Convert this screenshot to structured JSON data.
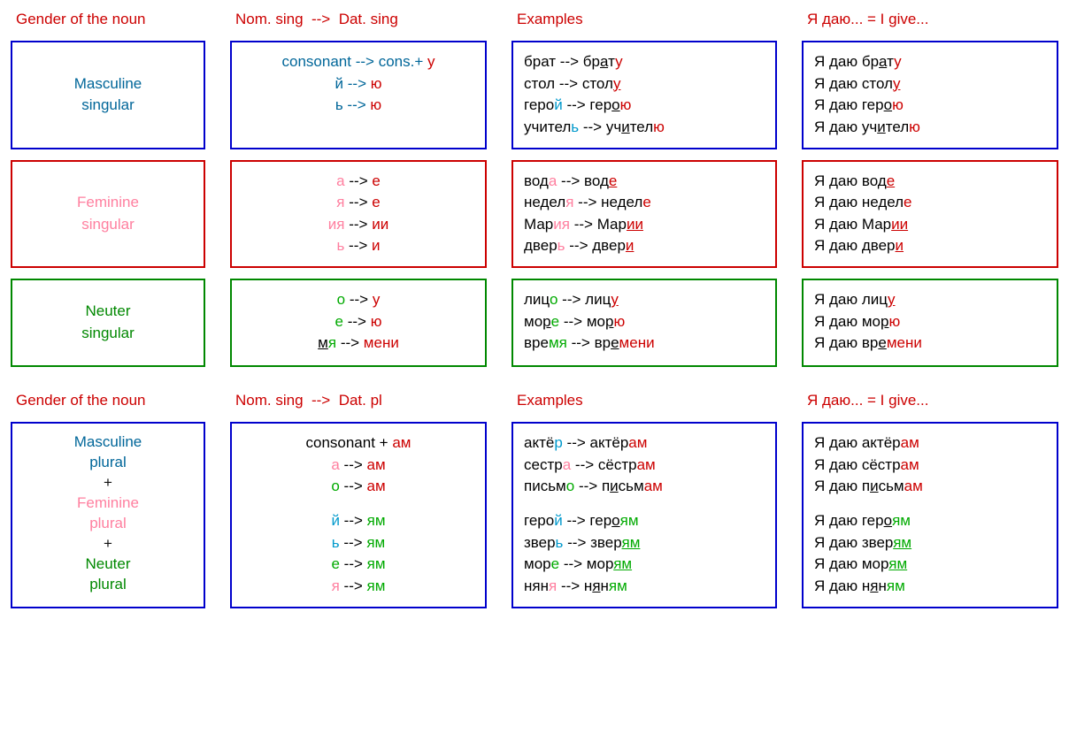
{
  "headers": {
    "col1": "Gender of the noun",
    "col2a": "Nom. sing",
    "col2b_sing": "Dat. sing",
    "col2b_pl": "Dat. pl",
    "col3": "Examples",
    "col4": "Я даю... = I give...",
    "arrow": "-->"
  },
  "colors": {
    "blue_border": "#0000cc",
    "red_border": "#cc0000",
    "green_border": "#008800",
    "blue_text": "#006699",
    "pink_text": "#ff7f9f",
    "green_text": "#008800",
    "red_text": "#cc0000",
    "hl_blue": "#0099cc",
    "hl_green": "#00aa00"
  },
  "masc": {
    "label1": "Masculine",
    "label2": "singular",
    "rules": [
      {
        "from": "consonant",
        "to": "cons.",
        "suffix": "у"
      },
      {
        "from": "й",
        "to": "",
        "suffix": "ю"
      },
      {
        "from": "ь",
        "to": "",
        "suffix": "ю"
      }
    ],
    "examples": [
      {
        "stem_a": "брат",
        "hl_a": "",
        "stem_b": "бр",
        "mid": "а",
        "rest": "т",
        "suf": "у"
      },
      {
        "stem_a": "стол",
        "hl_a": "",
        "stem_b": "стол",
        "mid": "",
        "rest": "",
        "suf": "у",
        "u": "у"
      },
      {
        "stem_a": "геро",
        "hl_a": "й",
        "stem_b": "гер",
        "mid": "о",
        "rest": "",
        "suf": "ю",
        "u": "о"
      },
      {
        "stem_a": "учител",
        "hl_a": "ь",
        "stem_b": "уч",
        "mid": "и",
        "rest": "тел",
        "suf": "ю",
        "u": "и"
      }
    ],
    "sentences": [
      {
        "pre": "Я даю бр",
        "u": "а",
        "mid": "т",
        "suf": "у"
      },
      {
        "pre": "Я даю стол",
        "u": "",
        "mid": "",
        "suf": "у",
        "usuf": "у"
      },
      {
        "pre": "Я даю гер",
        "u": "о",
        "mid": "",
        "suf": "ю"
      },
      {
        "pre": "Я даю уч",
        "u": "и",
        "mid": "тел",
        "suf": "ю"
      }
    ]
  },
  "fem": {
    "label1": "Feminine",
    "label2": "singular",
    "rules": [
      {
        "from": "а",
        "to": "",
        "suffix": "е"
      },
      {
        "from": "я",
        "to": "",
        "suffix": "е"
      },
      {
        "from": "ия",
        "to": "",
        "suffix": "ии"
      },
      {
        "from": "ь",
        "to": "",
        "suffix": "и"
      }
    ],
    "examples": [
      {
        "a1": "вод",
        "a2": "а",
        "b1": "вод",
        "bsuf": "е",
        "u": "е"
      },
      {
        "a1": "недел",
        "a2": "я",
        "b1": "недел",
        "bsuf": "е",
        "u": ""
      },
      {
        "a1": "Мар",
        "a2": "ия",
        "b1": "Мар",
        "bsuf": "ии",
        "u": "и"
      },
      {
        "a1": "двер",
        "a2": "ь",
        "b1": "двер",
        "bsuf": "и",
        "u": "и"
      }
    ],
    "sentences": [
      {
        "pre": "Я даю вод",
        "suf": "е",
        "u": "е"
      },
      {
        "pre": "Я даю недел",
        "suf": "е",
        "u": ""
      },
      {
        "pre": "Я даю Мар",
        "suf": "ии",
        "u": "и"
      },
      {
        "pre": "Я даю двер",
        "suf": "и",
        "u": "и"
      }
    ]
  },
  "neut": {
    "label1": "Neuter",
    "label2": "singular",
    "rules": [
      {
        "from": "о",
        "to": "",
        "suffix": "у"
      },
      {
        "from": "е",
        "to": "",
        "suffix": "ю"
      },
      {
        "from": "мя",
        "to": "",
        "suffix": "мени",
        "u": "м"
      }
    ],
    "examples": [
      {
        "a1": "лиц",
        "a2": "о",
        "b1": "лиц",
        "bsuf": "у",
        "u": "у"
      },
      {
        "a1": "мо",
        "a2": "р",
        "a3": "е",
        "b1": "мо",
        "b2": "р",
        "bsuf": "ю",
        "u": "р"
      },
      {
        "a1": "вре",
        "a2": "мя",
        "b1": "вр",
        "b2": "е",
        "bsuf": "мени",
        "u": "е"
      }
    ],
    "sentences": [
      {
        "pre": "Я даю лиц",
        "suf": "у",
        "u": "у"
      },
      {
        "pre": "Я даю мо",
        "u": "р",
        "mid": "",
        "suf": "ю"
      },
      {
        "pre": "Я даю вр",
        "u": "е",
        "mid": "",
        "suf": "мени"
      }
    ]
  },
  "plural": {
    "labels": {
      "m1": "Masculine",
      "m2": "plural",
      "f1": "Feminine",
      "f2": "plural",
      "n1": "Neuter",
      "n2": "plural",
      "plus": "+"
    },
    "rules_top": [
      {
        "from": "consonant",
        "plus": "+",
        "suffix": "ам"
      },
      {
        "from": "а",
        "to": "",
        "suffix": "ам"
      },
      {
        "from": "о",
        "to": "",
        "suffix": "ам"
      }
    ],
    "rules_bot": [
      {
        "from": "й",
        "to": "",
        "suffix": "ям"
      },
      {
        "from": "ь",
        "to": "",
        "suffix": "ям"
      },
      {
        "from": "е",
        "to": "",
        "suffix": "ям"
      },
      {
        "from": "я",
        "to": "",
        "suffix": "ям"
      }
    ],
    "examples_top": [
      {
        "a1": "актё",
        "a2": "р",
        "b1": "актёр",
        "bsuf": "ам"
      },
      {
        "a1": "сестр",
        "a2": "а",
        "b1": "сёстр",
        "bsuf": "ам"
      },
      {
        "a1": "письм",
        "a2": "о",
        "b1": "п",
        "u": "и",
        "b2": "сьм",
        "bsuf": "ам"
      }
    ],
    "examples_bot": [
      {
        "a1": "геро",
        "a2": "й",
        "b1": "гер",
        "u": "о",
        "b2": "",
        "bsuf": "ям"
      },
      {
        "a1": "звер",
        "a2": "ь",
        "b1": "звер",
        "u": "я",
        "b2": "",
        "bsuf": "м",
        "full": "ям"
      },
      {
        "a1": "мор",
        "a2": "е",
        "b1": "мор",
        "u": "я",
        "b2": "",
        "bsuf": "м",
        "full": "ям"
      },
      {
        "a1": "нян",
        "a2": "я",
        "b1": "н",
        "u": "я",
        "b2": "н",
        "bsuf": "ям"
      }
    ],
    "sentences_top": [
      {
        "pre": "Я даю актёр",
        "suf": "ам"
      },
      {
        "pre": "Я даю  сёстр",
        "suf": "ам"
      },
      {
        "pre": "Я даю п",
        "u": "и",
        "mid": "сьм",
        "suf": "ам"
      }
    ],
    "sentences_bot": [
      {
        "pre": "Я даю гер",
        "u": "о",
        "mid": "",
        "suf": "ям"
      },
      {
        "pre": "Я даю звер",
        "u": "я",
        "mid": "",
        "suf": "м",
        "usuf": "я"
      },
      {
        "pre": "Я даю мор",
        "u": "я",
        "mid": "",
        "suf": "м",
        "usuf": "я"
      },
      {
        "pre": "Я даю н",
        "u": "я",
        "mid": "н",
        "suf": "ям"
      }
    ]
  }
}
